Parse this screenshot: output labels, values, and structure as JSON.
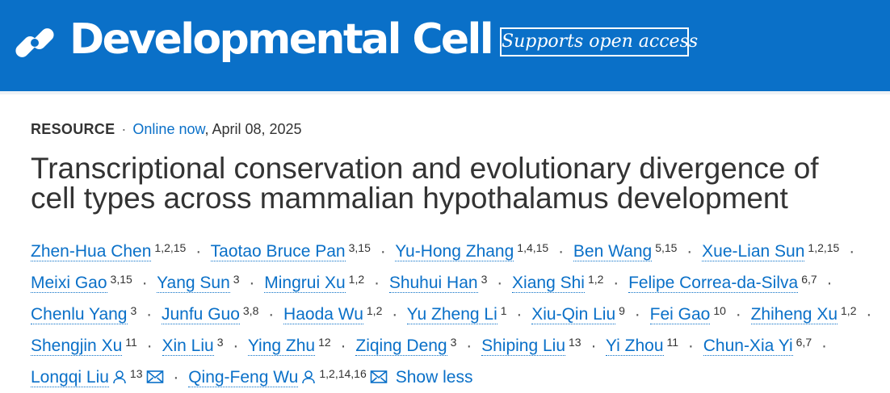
{
  "header": {
    "journal_name": "Developmental Cell",
    "open_access_label": "Supports open access",
    "logo_icon": "cell-press-logo",
    "colors": {
      "brand": "#0a70c8",
      "text_on_brand": "#ffffff"
    }
  },
  "article": {
    "type": "RESOURCE",
    "status": "Online now",
    "date": ", April 08, 2025",
    "title_line1": "Transcriptional conservation and evolutionary divergence of",
    "title_line2": "cell types across mammalian hypothalamus development"
  },
  "authors": [
    {
      "name": "Zhen-Hua Chen",
      "aff": "1,2,15"
    },
    {
      "name": "Taotao Bruce Pan",
      "aff": "3,15"
    },
    {
      "name": "Yu-Hong Zhang",
      "aff": "1,4,15"
    },
    {
      "name": "Ben Wang",
      "aff": "5,15"
    },
    {
      "name": "Xue-Lian Sun",
      "aff": "1,2,15"
    },
    {
      "name": "Meixi Gao",
      "aff": "3,15"
    },
    {
      "name": "Yang Sun",
      "aff": "3"
    },
    {
      "name": "Mingrui Xu",
      "aff": "1,2"
    },
    {
      "name": "Shuhui Han",
      "aff": "3"
    },
    {
      "name": "Xiang Shi",
      "aff": "1,2"
    },
    {
      "name": "Felipe Correa-da-Silva",
      "aff": "6,7"
    },
    {
      "name": "Chenlu Yang",
      "aff": "3"
    },
    {
      "name": "Junfu Guo",
      "aff": "3,8"
    },
    {
      "name": "Haoda Wu",
      "aff": "1,2"
    },
    {
      "name": "Yu Zheng Li",
      "aff": "1"
    },
    {
      "name": "Xiu-Qin Liu",
      "aff": "9"
    },
    {
      "name": "Fei Gao",
      "aff": "10"
    },
    {
      "name": "Zhiheng Xu",
      "aff": "1,2"
    },
    {
      "name": "Shengjin Xu",
      "aff": "11"
    },
    {
      "name": "Xin Liu",
      "aff": "3"
    },
    {
      "name": "Ying Zhu",
      "aff": "12"
    },
    {
      "name": "Ziqing Deng",
      "aff": "3"
    },
    {
      "name": "Shiping Liu",
      "aff": "13"
    },
    {
      "name": "Yi Zhou",
      "aff": "11"
    },
    {
      "name": "Chun-Xia Yi",
      "aff": "6,7"
    },
    {
      "name": "Longqi Liu",
      "aff": "13",
      "corresponding": true
    },
    {
      "name": "Qing-Feng Wu",
      "aff": "1,2,14,16",
      "corresponding": true
    }
  ],
  "author_separator": "·",
  "show_less_label": "Show less",
  "icons": {
    "corresponding": "person-icon",
    "email": "mail-icon"
  }
}
